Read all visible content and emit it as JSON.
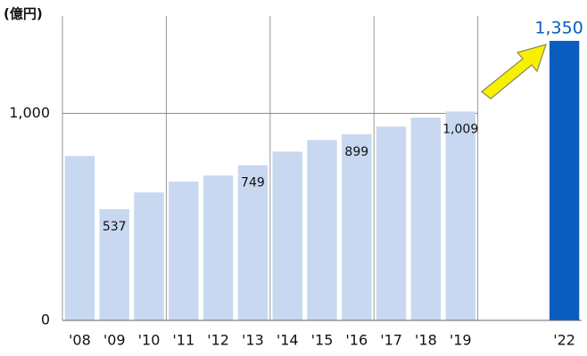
{
  "chart_data": {
    "type": "bar",
    "y_label": "(億円)",
    "categories": [
      "'08",
      "'09",
      "'10",
      "'11",
      "'12",
      "'13",
      "'14",
      "'15",
      "'16",
      "'17",
      "'18",
      "'19",
      null,
      null,
      "'22"
    ],
    "values": [
      794,
      537,
      618,
      670,
      700,
      749,
      815,
      871,
      899,
      936,
      979,
      1009,
      null,
      null,
      1350
    ],
    "value_labels": [
      null,
      "537",
      null,
      null,
      null,
      "749",
      null,
      null,
      "899",
      null,
      null,
      "1,009",
      null,
      null,
      "1,350"
    ],
    "colors": [
      "#c7d8f0",
      "#c7d8f0",
      "#c7d8f0",
      "#c7d8f0",
      "#c7d8f0",
      "#c7d8f0",
      "#c7d8f0",
      "#c7d8f0",
      "#c7d8f0",
      "#c7d8f0",
      "#c7d8f0",
      "#c7d8f0",
      null,
      null,
      "#0a5cbf"
    ],
    "ylim": [
      0,
      1470
    ],
    "yticks": [
      0,
      {
        "value": 1000,
        "label": "1,000"
      }
    ],
    "grid": true
  }
}
